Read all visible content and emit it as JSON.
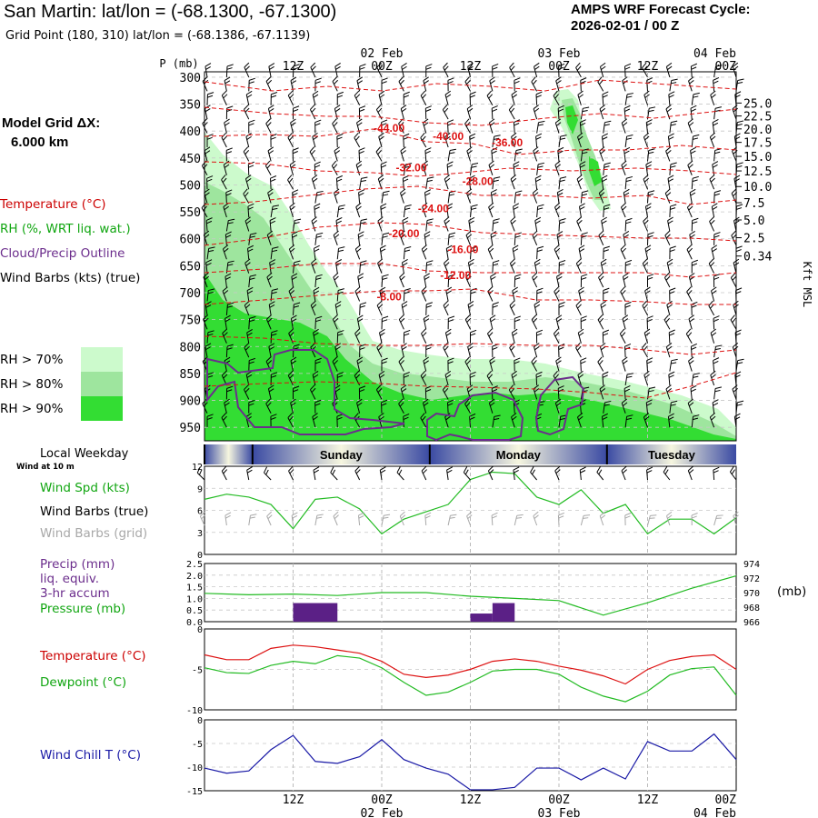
{
  "header": {
    "title": "San Martin:  lat/lon = (-68.1300, -67.1300)",
    "subtitle": "Grid Point (180, 310) lat/lon = (-68.1386, -67.1139)",
    "cycle_title": "AMPS WRF Forecast Cycle:",
    "cycle_value": "2026-02-01 / 00  Z"
  },
  "model": {
    "grid_label": "Model Grid ΔX:",
    "grid_value": "6.000 km"
  },
  "legend": {
    "temperature": "Temperature (°C)",
    "rh": "RH (%, WRT liq. wat.)",
    "cloud": "Cloud/Precip Outline",
    "wind": "Wind Barbs (kts) (true)",
    "rh_levels": [
      {
        "label": "RH > 70%",
        "color": "#ccfacc"
      },
      {
        "label": "RH > 80%",
        "color": "#9ee59e"
      },
      {
        "label": "RH > 90%",
        "color": "#33dd33"
      }
    ]
  },
  "colors": {
    "temperature": "#dd1111",
    "rh": "#22bb22",
    "cloud": "#6b2d8c",
    "wind_chill": "#1a1aa6",
    "precip": "#5b2086",
    "barb": "#000000",
    "grid_barb": "#a8a8a8"
  },
  "time_axis": {
    "top_labels": [
      {
        "t": 12,
        "tick": "12Z",
        "date": ""
      },
      {
        "t": 24,
        "tick": "00Z",
        "date": "02 Feb"
      },
      {
        "t": 36,
        "tick": "12Z",
        "date": ""
      },
      {
        "t": 48,
        "tick": "00Z",
        "date": "03 Feb"
      },
      {
        "t": 60,
        "tick": "12Z",
        "date": ""
      },
      {
        "t": 72,
        "tick": "00Z",
        "date": "04 Feb"
      }
    ],
    "bottom_labels": [
      {
        "t": 12,
        "tick": "12Z",
        "date": ""
      },
      {
        "t": 24,
        "tick": "00Z",
        "date": "02 Feb"
      },
      {
        "t": 36,
        "tick": "12Z",
        "date": ""
      },
      {
        "t": 48,
        "tick": "00Z",
        "date": "03 Feb"
      },
      {
        "t": 60,
        "tick": "12Z",
        "date": ""
      },
      {
        "t": 72,
        "tick": "00Z",
        "date": "04 Feb"
      }
    ]
  },
  "weekday": {
    "label": "Local Weekday",
    "wind_note": "Wind at 10 m",
    "days": [
      "Sunday",
      "Monday",
      "Tuesday"
    ]
  },
  "panel_labels": {
    "wind_spd": "Wind Spd (kts)",
    "wind_barbs_true": "Wind Barbs (true)",
    "wind_barbs_grid": "Wind Barbs (grid)",
    "precip_lines": [
      "Precip (mm)",
      "liq. equiv.",
      "3-hr accum"
    ],
    "pressure": "Pressure (mb)",
    "pressure_unit": "(mb)",
    "temperature": "Temperature (°C)",
    "dewpoint": "Dewpoint (°C)",
    "wind_chill": "Wind Chill T (°C)"
  },
  "chart_data": [
    {
      "type": "heatmap",
      "subtype": "time-height cross section",
      "x_range_hours": [
        0,
        72
      ],
      "ylabel": "P (mb)",
      "y_ticks": [
        "300",
        "350",
        "400",
        "450",
        "500",
        "550",
        "600",
        "650",
        "700",
        "750",
        "800",
        "850",
        "900",
        "950"
      ],
      "right_axis_label": "Kft MSL",
      "right_ticks": [
        {
          "p": 348,
          "label": "25.0"
        },
        {
          "p": 372,
          "label": "22.5"
        },
        {
          "p": 396,
          "label": "20.0"
        },
        {
          "p": 421,
          "label": "17.5"
        },
        {
          "p": 447,
          "label": "15.0"
        },
        {
          "p": 474,
          "label": "12.5"
        },
        {
          "p": 503,
          "label": "10.0"
        },
        {
          "p": 533,
          "label": "7.5"
        },
        {
          "p": 565,
          "label": "5.0"
        },
        {
          "p": 598,
          "label": "2.5"
        },
        {
          "p": 632,
          "label": "0.34"
        }
      ],
      "temperature_contour_labels": [
        {
          "t": 25,
          "p": 395,
          "label": "-44.00"
        },
        {
          "t": 33,
          "p": 410,
          "label": "-40.00"
        },
        {
          "t": 41,
          "p": 422,
          "label": "-36.00"
        },
        {
          "t": 28,
          "p": 468,
          "label": "-32.00"
        },
        {
          "t": 37,
          "p": 493,
          "label": "-28.00"
        },
        {
          "t": 31,
          "p": 544,
          "label": "-24.00"
        },
        {
          "t": 27,
          "p": 590,
          "label": "-20.00"
        },
        {
          "t": 35,
          "p": 620,
          "label": "-16.00"
        },
        {
          "t": 34,
          "p": 668,
          "label": "-12.00"
        },
        {
          "t": 25,
          "p": 708,
          "label": "-8.00"
        }
      ]
    },
    {
      "type": "line",
      "name": "wind speed",
      "x_hours": [
        0,
        3,
        6,
        9,
        12,
        15,
        18,
        21,
        24,
        27,
        30,
        33,
        36,
        39,
        42,
        45,
        48,
        51,
        54,
        57,
        60,
        63,
        66,
        69,
        72
      ],
      "series": [
        {
          "name": "Wind Spd (kts)",
          "values": [
            7.5,
            8.2,
            7.8,
            6.8,
            3.5,
            7.5,
            7.8,
            6.2,
            2.8,
            4.8,
            5.8,
            6.8,
            10.2,
            11.2,
            11.0,
            7.8,
            6.8,
            8.8,
            5.6,
            6.8,
            2.8,
            4.8,
            4.8,
            2.8,
            5.0
          ]
        }
      ],
      "ylim": [
        0,
        12
      ],
      "y_ticks": [
        "0",
        "3",
        "6",
        "9",
        "12"
      ]
    },
    {
      "type": "bar",
      "name": "precip and pressure",
      "precip_bars": [
        {
          "t0": 12,
          "t1": 18,
          "value": 0.8
        },
        {
          "t0": 36,
          "t1": 39,
          "value": 0.35
        },
        {
          "t0": 39,
          "t1": 42,
          "value": 0.8
        }
      ],
      "precip_ylim": [
        0,
        2.5
      ],
      "precip_ticks": [
        "0.0",
        "0.5",
        "1.0",
        "1.5",
        "2.0",
        "2.5"
      ],
      "pressure_x": [
        0,
        6,
        12,
        18,
        24,
        30,
        36,
        42,
        48,
        54,
        60,
        66,
        72
      ],
      "pressure_values": [
        969.9,
        969.7,
        969.8,
        969.6,
        970.0,
        970.0,
        969.5,
        969.2,
        968.9,
        966.9,
        968.6,
        970.6,
        972.3
      ],
      "pressure_ylim": [
        966,
        974
      ],
      "pressure_ticks": [
        "966",
        "968",
        "970",
        "972",
        "974"
      ]
    },
    {
      "type": "line",
      "name": "temperature and dewpoint",
      "x_hours": [
        0,
        3,
        6,
        9,
        12,
        15,
        18,
        21,
        24,
        27,
        30,
        33,
        36,
        39,
        42,
        45,
        48,
        51,
        54,
        57,
        60,
        63,
        66,
        69,
        72
      ],
      "series": [
        {
          "name": "Temperature (°C)",
          "values": [
            -3.2,
            -3.8,
            -3.8,
            -2.4,
            -2.0,
            -2.2,
            -2.6,
            -3.0,
            -4.0,
            -5.6,
            -6.0,
            -5.7,
            -5.0,
            -4.0,
            -3.7,
            -4.0,
            -4.6,
            -5.1,
            -5.8,
            -6.8,
            -5.0,
            -3.9,
            -3.4,
            -3.2,
            -5.0
          ]
        },
        {
          "name": "Dewpoint (°C)",
          "values": [
            -4.8,
            -5.4,
            -5.5,
            -4.5,
            -4.0,
            -4.3,
            -3.3,
            -3.6,
            -4.8,
            -6.6,
            -8.2,
            -7.8,
            -6.6,
            -5.2,
            -5.0,
            -5.0,
            -5.6,
            -7.2,
            -8.3,
            -9.0,
            -7.7,
            -5.7,
            -4.9,
            -4.7,
            -8.2
          ]
        }
      ],
      "ylim": [
        -10,
        0
      ],
      "y_ticks": [
        "0",
        "-5",
        "-10"
      ]
    },
    {
      "type": "line",
      "name": "wind chill",
      "x_hours": [
        0,
        3,
        6,
        9,
        12,
        15,
        18,
        21,
        24,
        27,
        30,
        33,
        36,
        39,
        42,
        45,
        48,
        51,
        54,
        57,
        60,
        63,
        66,
        69,
        72
      ],
      "series": [
        {
          "name": "Wind Chill T (°C)",
          "values": [
            -10.2,
            -11.3,
            -10.8,
            -6.3,
            -3.3,
            -8.8,
            -9.2,
            -7.8,
            -4.2,
            -8.4,
            -10.2,
            -11.5,
            -14.8,
            -14.8,
            -14.3,
            -10.2,
            -10.2,
            -12.7,
            -10.2,
            -12.5,
            -4.6,
            -6.6,
            -6.6,
            -3.0,
            -8.4
          ]
        }
      ],
      "ylim": [
        -15,
        0
      ],
      "y_ticks": [
        "0",
        "-5",
        "-10",
        "-15"
      ]
    }
  ]
}
